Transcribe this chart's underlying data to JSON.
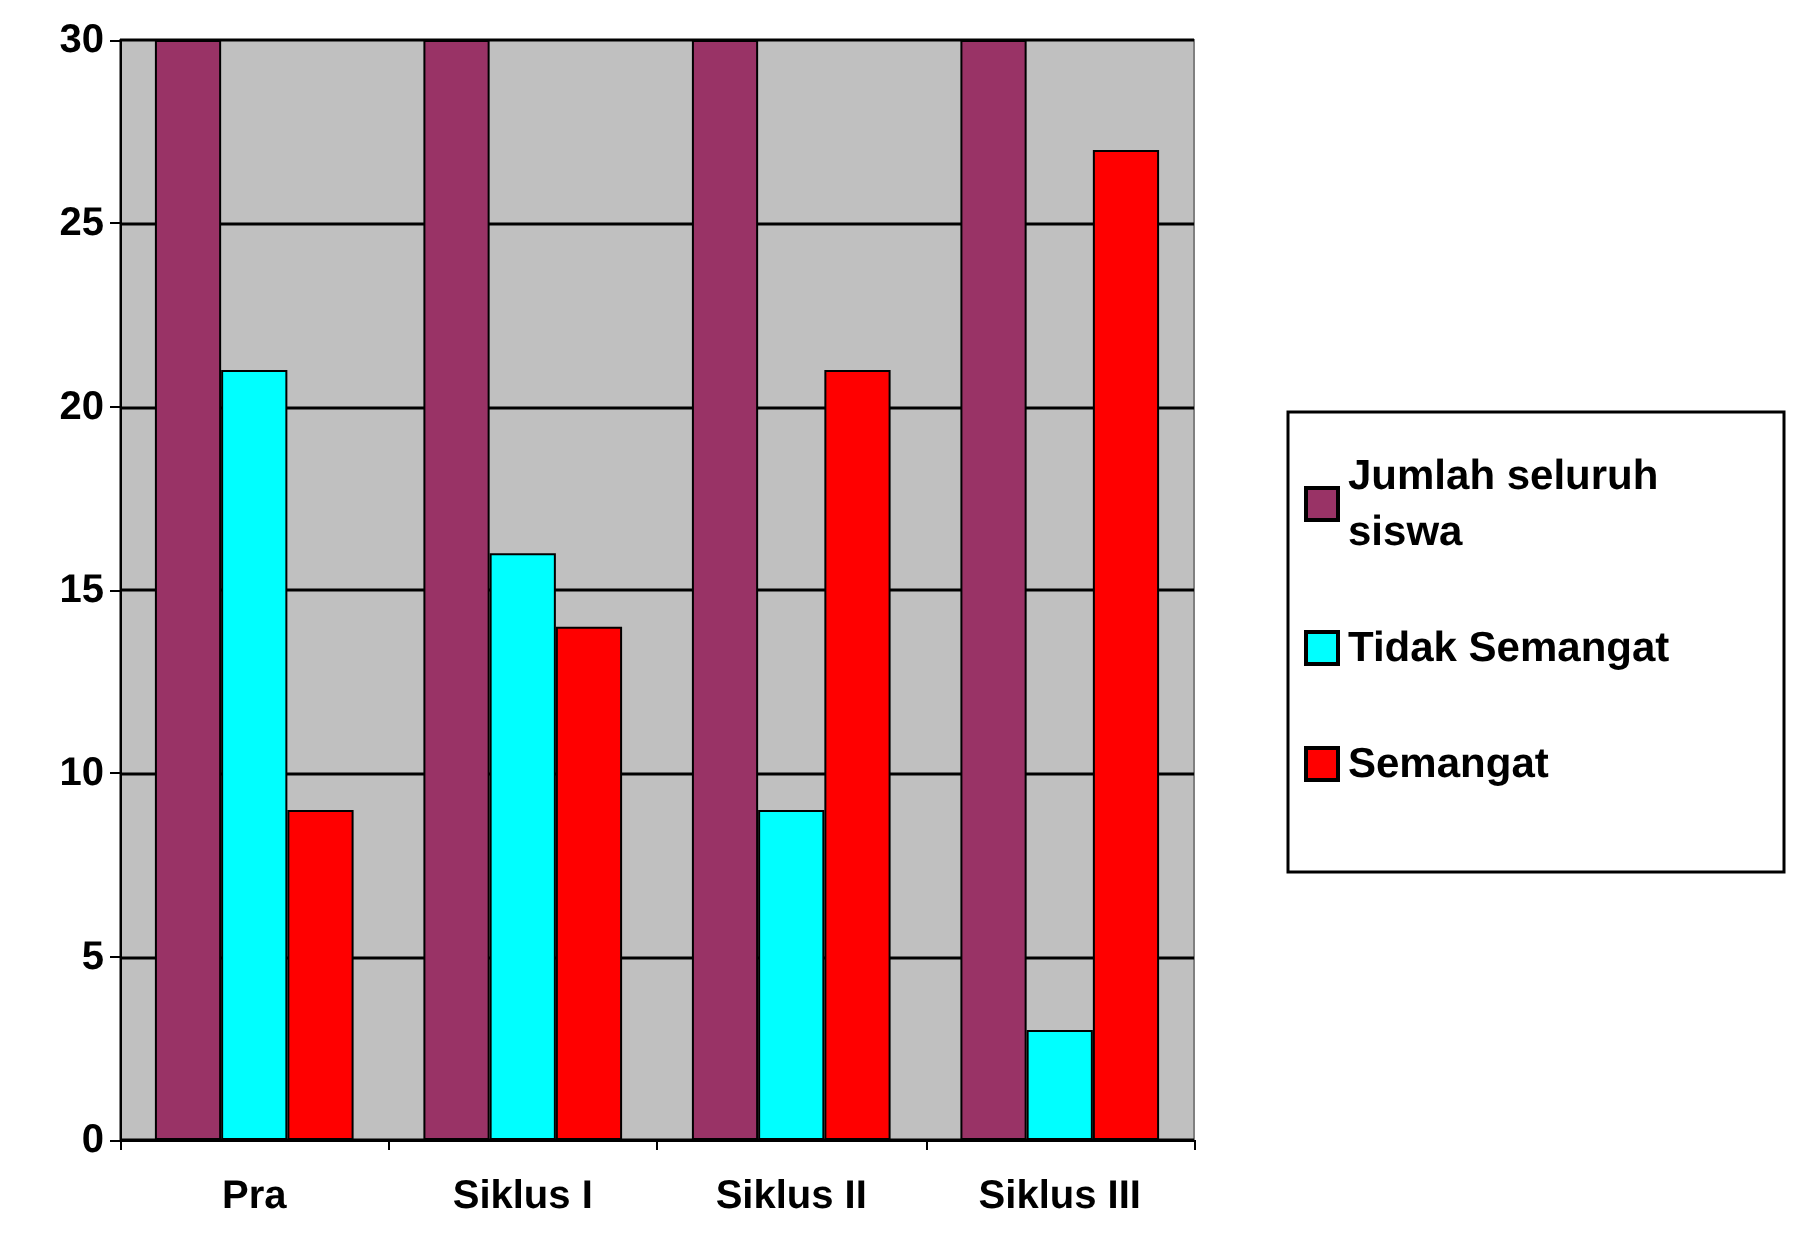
{
  "chart_data": {
    "type": "bar",
    "categories": [
      "Pra",
      "Siklus I",
      "Siklus II",
      "Siklus III"
    ],
    "series": [
      {
        "name": "Jumlah seluruh siswa",
        "color": "#993366",
        "values": [
          30,
          30,
          30,
          30
        ]
      },
      {
        "name": "Tidak Semangat",
        "color": "#00ffff",
        "values": [
          21,
          16,
          9,
          3
        ]
      },
      {
        "name": "Semangat",
        "color": "#ff0000",
        "values": [
          9,
          14,
          21,
          27
        ]
      }
    ],
    "ylim": [
      0,
      30
    ],
    "yticks": [
      0,
      5,
      10,
      15,
      20,
      25,
      30
    ],
    "grid": "y",
    "legend": "right"
  }
}
